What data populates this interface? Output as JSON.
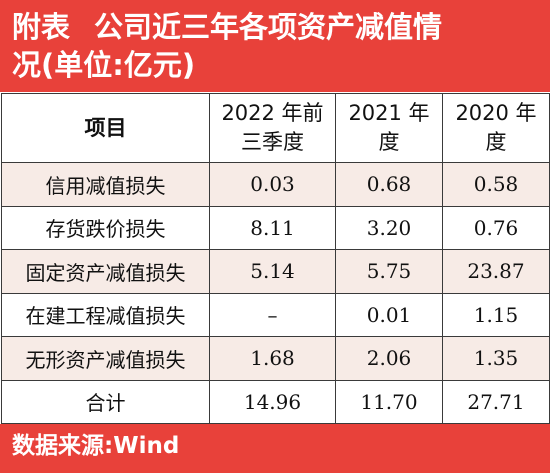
{
  "title": {
    "label": "附表",
    "line1": "公司近三年各项资产减值情",
    "line2": "况(单位:亿元)"
  },
  "table": {
    "headers": [
      {
        "line1": "项目",
        "line2": ""
      },
      {
        "line1": "2022 年前",
        "line2": "三季度"
      },
      {
        "line1": "2021 年",
        "line2": "度"
      },
      {
        "line1": "2020 年",
        "line2": "度"
      }
    ],
    "rows": [
      {
        "item": "信用减值损失",
        "v2022": "0.03",
        "v2021": "0.68",
        "v2020": "0.58"
      },
      {
        "item": "存货跌价损失",
        "v2022": "8.11",
        "v2021": "3.20",
        "v2020": "0.76"
      },
      {
        "item": "固定资产减值损失",
        "v2022": "5.14",
        "v2021": "5.75",
        "v2020": "23.87"
      },
      {
        "item": "在建工程减值损失",
        "v2022": "–",
        "v2021": "0.01",
        "v2020": "1.15"
      },
      {
        "item": "无形资产减值损失",
        "v2022": "1.68",
        "v2021": "2.06",
        "v2020": "1.35"
      },
      {
        "item": "合计",
        "v2022": "14.96",
        "v2021": "11.70",
        "v2020": "27.71"
      }
    ]
  },
  "footer": {
    "source": "数据来源:Wind"
  }
}
